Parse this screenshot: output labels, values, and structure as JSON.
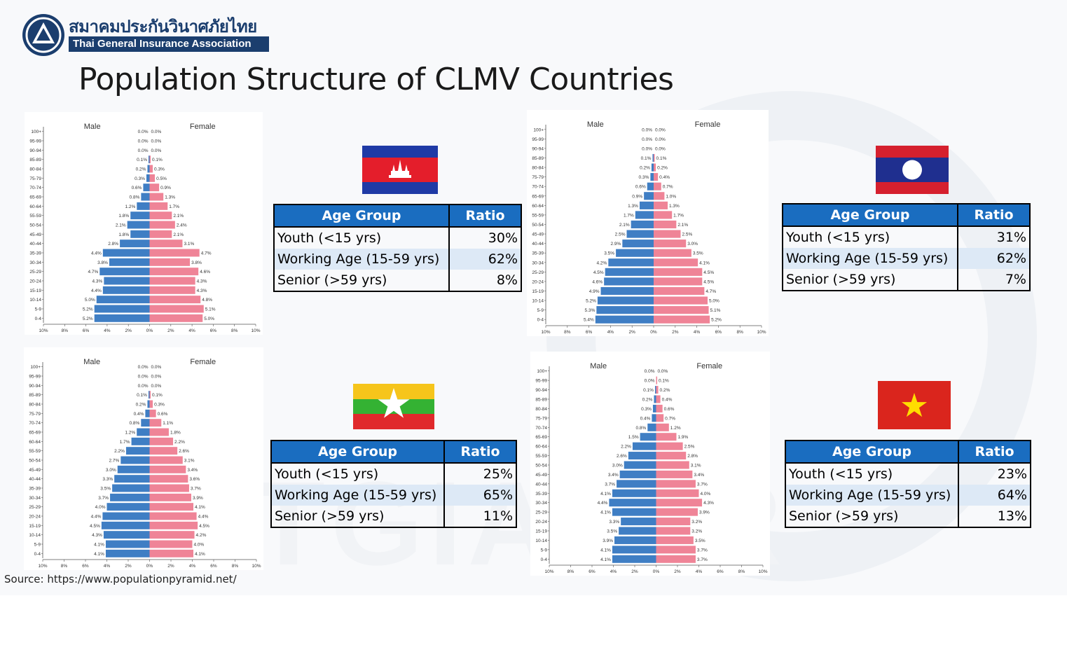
{
  "header": {
    "logo_thai": "สมาคมประกันวินาศภัยไทย",
    "logo_english": "Thai General Insurance Association",
    "title": "Population Structure of CLMV Countries"
  },
  "source": "Source: https://www.populationpyramid.net/",
  "colors": {
    "male": "#3f7ec4",
    "female": "#ef8497",
    "table_header": "#1a6dc0",
    "table_alt_row": "#dde9f6"
  },
  "tables": {
    "header_age": "Age Group",
    "header_ratio": "Ratio",
    "cambodia": {
      "rows": [
        {
          "label": "Youth (<15 yrs)",
          "value": "30%"
        },
        {
          "label": "Working Age (15-59 yrs)",
          "value": "62%"
        },
        {
          "label": "Senior (>59 yrs)",
          "value": "8%"
        }
      ]
    },
    "laos": {
      "rows": [
        {
          "label": "Youth (<15 yrs)",
          "value": "31%"
        },
        {
          "label": "Working Age (15-59 yrs)",
          "value": "62%"
        },
        {
          "label": "Senior (>59 yrs)",
          "value": "7%"
        }
      ]
    },
    "myanmar": {
      "rows": [
        {
          "label": "Youth (<15 yrs)",
          "value": "25%"
        },
        {
          "label": "Working Age (15-59 yrs)",
          "value": "65%"
        },
        {
          "label": "Senior (>59 yrs)",
          "value": "11%"
        }
      ]
    },
    "vietnam": {
      "rows": [
        {
          "label": "Youth (<15 yrs)",
          "value": "23%"
        },
        {
          "label": "Working Age (15-59 yrs)",
          "value": "64%"
        },
        {
          "label": "Senior (>59 yrs)",
          "value": "13%"
        }
      ]
    }
  },
  "flags": {
    "cambodia": "cambodia-flag",
    "laos": "laos-flag",
    "myanmar": "myanmar-flag",
    "vietnam": "vietnam-flag"
  },
  "chart_data": [
    {
      "type": "bar",
      "id": "cambodia",
      "orientation": "horizontal",
      "male_label": "Male",
      "female_label": "Female",
      "categories": [
        "100+",
        "95-99",
        "90-94",
        "85-89",
        "80-84",
        "75-79",
        "70-74",
        "65-69",
        "60-64",
        "55-59",
        "50-54",
        "45-49",
        "40-44",
        "35-39",
        "30-34",
        "25-29",
        "20-24",
        "15-19",
        "10-14",
        "5-9",
        "0-4"
      ],
      "xticks": [
        "10%",
        "8%",
        "6%",
        "4%",
        "2%",
        "0%",
        "2%",
        "4%",
        "6%",
        "8%",
        "10%"
      ],
      "xlim": [
        -10,
        10
      ],
      "series": [
        {
          "name": "Male",
          "values": [
            0.0,
            0.0,
            0.0,
            0.1,
            0.2,
            0.3,
            0.6,
            0.8,
            1.2,
            1.8,
            2.1,
            1.8,
            2.8,
            4.4,
            3.8,
            4.7,
            4.3,
            4.4,
            5.0,
            5.2,
            5.2
          ],
          "labels": [
            "0.0%",
            "0.0%",
            "0.0%",
            "0.1%",
            "0.2%",
            "0.3%",
            "0.6%",
            "0.8%",
            "1.2%",
            "1.8%",
            "2.1%",
            "1.8%",
            "2.8%",
            "4.4%",
            "3.8%",
            "4.7%",
            "4.3%",
            "4.4%",
            "5.0%",
            "5.2%",
            "5.2%"
          ]
        },
        {
          "name": "Female",
          "values": [
            0.0,
            0.0,
            0.0,
            0.1,
            0.3,
            0.5,
            0.9,
            1.3,
            1.7,
            2.1,
            2.4,
            2.1,
            3.1,
            4.7,
            3.8,
            4.6,
            4.3,
            4.3,
            4.8,
            5.1,
            5.0
          ],
          "labels": [
            "0.0%",
            "0.0%",
            "0.0%",
            "0.1%",
            "0.3%",
            "0.5%",
            "0.9%",
            "1.3%",
            "1.7%",
            "2.1%",
            "2.4%",
            "2.1%",
            "3.1%",
            "4.7%",
            "3.8%",
            "4.6%",
            "4.3%",
            "4.3%",
            "4.8%",
            "5.1%",
            "5.0%"
          ]
        }
      ]
    },
    {
      "type": "bar",
      "id": "laos",
      "orientation": "horizontal",
      "male_label": "Male",
      "female_label": "Female",
      "categories": [
        "100+",
        "95-99",
        "90-94",
        "85-89",
        "80-84",
        "75-79",
        "70-74",
        "65-69",
        "60-64",
        "55-59",
        "50-54",
        "45-49",
        "40-44",
        "35-39",
        "30-34",
        "25-29",
        "20-24",
        "15-19",
        "10-14",
        "5-9",
        "0-4"
      ],
      "xticks": [
        "10%",
        "8%",
        "6%",
        "4%",
        "2%",
        "0%",
        "2%",
        "4%",
        "6%",
        "8%",
        "10%"
      ],
      "xlim": [
        -10,
        10
      ],
      "series": [
        {
          "name": "Male",
          "values": [
            0.0,
            0.0,
            0.0,
            0.1,
            0.2,
            0.3,
            0.6,
            0.9,
            1.3,
            1.7,
            2.1,
            2.5,
            2.9,
            3.5,
            4.2,
            4.5,
            4.6,
            4.9,
            5.2,
            5.3,
            5.4
          ],
          "labels": [
            "0.0%",
            "0.0%",
            "0.0%",
            "0.1%",
            "0.2%",
            "0.3%",
            "0.6%",
            "0.9%",
            "1.3%",
            "1.7%",
            "2.1%",
            "2.5%",
            "2.9%",
            "3.5%",
            "4.2%",
            "4.5%",
            "4.6%",
            "4.9%",
            "5.2%",
            "5.3%",
            "5.4%"
          ]
        },
        {
          "name": "Female",
          "values": [
            0.0,
            0.0,
            0.0,
            0.1,
            0.2,
            0.4,
            0.7,
            1.0,
            1.3,
            1.7,
            2.1,
            2.5,
            3.0,
            3.5,
            4.1,
            4.5,
            4.5,
            4.7,
            5.0,
            5.1,
            5.2
          ],
          "labels": [
            "0.0%",
            "0.0%",
            "0.0%",
            "0.1%",
            "0.2%",
            "0.4%",
            "0.7%",
            "1.0%",
            "1.3%",
            "1.7%",
            "2.1%",
            "2.5%",
            "3.0%",
            "3.5%",
            "4.1%",
            "4.5%",
            "4.5%",
            "4.7%",
            "5.0%",
            "5.1%",
            "5.2%"
          ]
        }
      ]
    },
    {
      "type": "bar",
      "id": "myanmar",
      "orientation": "horizontal",
      "male_label": "Male",
      "female_label": "Female",
      "categories": [
        "100+",
        "95-99",
        "90-94",
        "85-89",
        "80-84",
        "75-79",
        "70-74",
        "65-69",
        "60-64",
        "55-59",
        "50-54",
        "45-49",
        "40-44",
        "35-39",
        "30-34",
        "25-29",
        "20-24",
        "15-19",
        "10-14",
        "5-9",
        "0-4"
      ],
      "xticks": [
        "10%",
        "8%",
        "6%",
        "4%",
        "2%",
        "0%",
        "2%",
        "4%",
        "6%",
        "8%",
        "10%"
      ],
      "xlim": [
        -10,
        10
      ],
      "series": [
        {
          "name": "Male",
          "values": [
            0.0,
            0.0,
            0.0,
            0.1,
            0.2,
            0.4,
            0.8,
            1.2,
            1.7,
            2.2,
            2.7,
            3.0,
            3.3,
            3.5,
            3.7,
            4.0,
            4.4,
            4.5,
            4.3,
            4.1,
            4.1
          ],
          "labels": [
            "0.0%",
            "0.0%",
            "0.0%",
            "0.1%",
            "0.2%",
            "0.4%",
            "0.8%",
            "1.2%",
            "1.7%",
            "2.2%",
            "2.7%",
            "3.0%",
            "3.3%",
            "3.5%",
            "3.7%",
            "4.0%",
            "4.4%",
            "4.5%",
            "4.3%",
            "4.1%",
            "4.1%"
          ]
        },
        {
          "name": "Female",
          "values": [
            0.0,
            0.0,
            0.0,
            0.1,
            0.3,
            0.6,
            1.1,
            1.8,
            2.2,
            2.6,
            3.1,
            3.4,
            3.6,
            3.7,
            3.9,
            4.1,
            4.4,
            4.5,
            4.2,
            4.0,
            4.1
          ],
          "labels": [
            "0.0%",
            "0.0%",
            "0.0%",
            "0.1%",
            "0.3%",
            "0.6%",
            "1.1%",
            "1.8%",
            "2.2%",
            "2.6%",
            "3.1%",
            "3.4%",
            "3.6%",
            "3.7%",
            "3.9%",
            "4.1%",
            "4.4%",
            "4.5%",
            "4.2%",
            "4.0%",
            "4.1%"
          ]
        }
      ]
    },
    {
      "type": "bar",
      "id": "vietnam",
      "orientation": "horizontal",
      "male_label": "Male",
      "female_label": "Female",
      "categories": [
        "100+",
        "95-99",
        "90-94",
        "85-89",
        "80-84",
        "75-79",
        "70-74",
        "65-69",
        "60-64",
        "55-59",
        "50-54",
        "45-49",
        "40-44",
        "35-39",
        "30-34",
        "25-29",
        "20-24",
        "15-19",
        "10-14",
        "5-9",
        "0-4"
      ],
      "xticks": [
        "10%",
        "8%",
        "6%",
        "4%",
        "2%",
        "0%",
        "2%",
        "4%",
        "6%",
        "8%",
        "10%"
      ],
      "xlim": [
        -10,
        10
      ],
      "series": [
        {
          "name": "Male",
          "values": [
            0.0,
            0.0,
            0.1,
            0.2,
            0.3,
            0.4,
            0.8,
            1.5,
            2.2,
            2.6,
            3.0,
            3.4,
            3.7,
            4.1,
            4.4,
            4.1,
            3.3,
            3.5,
            3.9,
            4.1,
            4.1
          ],
          "labels": [
            "0.0%",
            "0.0%",
            "0.1%",
            "0.2%",
            "0.3%",
            "0.4%",
            "0.8%",
            "1.5%",
            "2.2%",
            "2.6%",
            "3.0%",
            "3.4%",
            "3.7%",
            "4.1%",
            "4.4%",
            "4.1%",
            "3.3%",
            "3.5%",
            "3.9%",
            "4.1%",
            "4.1%"
          ]
        },
        {
          "name": "Female",
          "values": [
            0.0,
            0.1,
            0.2,
            0.4,
            0.6,
            0.7,
            1.2,
            1.9,
            2.5,
            2.8,
            3.1,
            3.4,
            3.7,
            4.0,
            4.3,
            3.9,
            3.2,
            3.2,
            3.5,
            3.7,
            3.7
          ],
          "labels": [
            "0.0%",
            "0.1%",
            "0.2%",
            "0.4%",
            "0.6%",
            "0.7%",
            "1.2%",
            "1.9%",
            "2.5%",
            "2.8%",
            "3.1%",
            "3.4%",
            "3.7%",
            "4.0%",
            "4.3%",
            "3.9%",
            "3.2%",
            "3.2%",
            "3.5%",
            "3.7%",
            "3.7%"
          ]
        }
      ]
    }
  ]
}
